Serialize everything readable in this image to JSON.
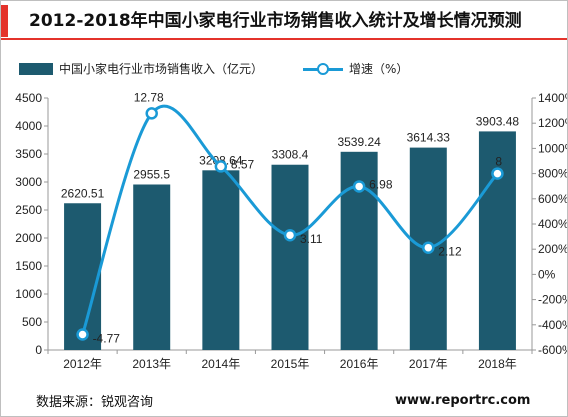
{
  "title": "2012-2018年中国小家电行业市场销售收入统计及增长情况预测",
  "source": "数据来源：锐观咨询",
  "site": "www.reportrc.com",
  "colors": {
    "bar": "#1d5a6f",
    "line": "#1a9ad6",
    "accent": "#e4332b"
  },
  "chart_data": {
    "type": "bar",
    "categories": [
      "2012年",
      "2013年",
      "2014年",
      "2015年",
      "2016年",
      "2017年",
      "2018年"
    ],
    "series": [
      {
        "name": "中国小家电行业市场销售收入（亿元）",
        "type": "bar",
        "axis": "left",
        "values": [
          2620.51,
          2955.5,
          3208.64,
          3308.4,
          3539.24,
          3614.33,
          3903.48
        ],
        "labels": [
          "2620.51",
          "2955.5",
          "3208.64",
          "3308.4",
          "3539.24",
          "3614.33",
          "3903.48"
        ]
      },
      {
        "name": "增速（%）",
        "type": "line",
        "axis": "right",
        "smooth": true,
        "plotted": [
          -4.77,
          12.78,
          8.57,
          3.11,
          6.98,
          2.12,
          8
        ],
        "labels": [
          "-4.77",
          "12.78",
          "8.57",
          "3.11",
          "6.98",
          "2.12",
          "8"
        ]
      }
    ],
    "ylim_left": [
      0,
      4500
    ],
    "yticks_left": [
      "0",
      "500",
      "1000",
      "1500",
      "2000",
      "2500",
      "3000",
      "3500",
      "4000",
      "4500"
    ],
    "ylim_right": [
      -600,
      1400
    ],
    "yticks_right": [
      "-600%",
      "-400%",
      "-200%",
      "0%",
      "200%",
      "400%",
      "600%",
      "800%",
      "1000%",
      "1200%",
      "1400%"
    ],
    "grid": false,
    "legend": "top-left"
  }
}
